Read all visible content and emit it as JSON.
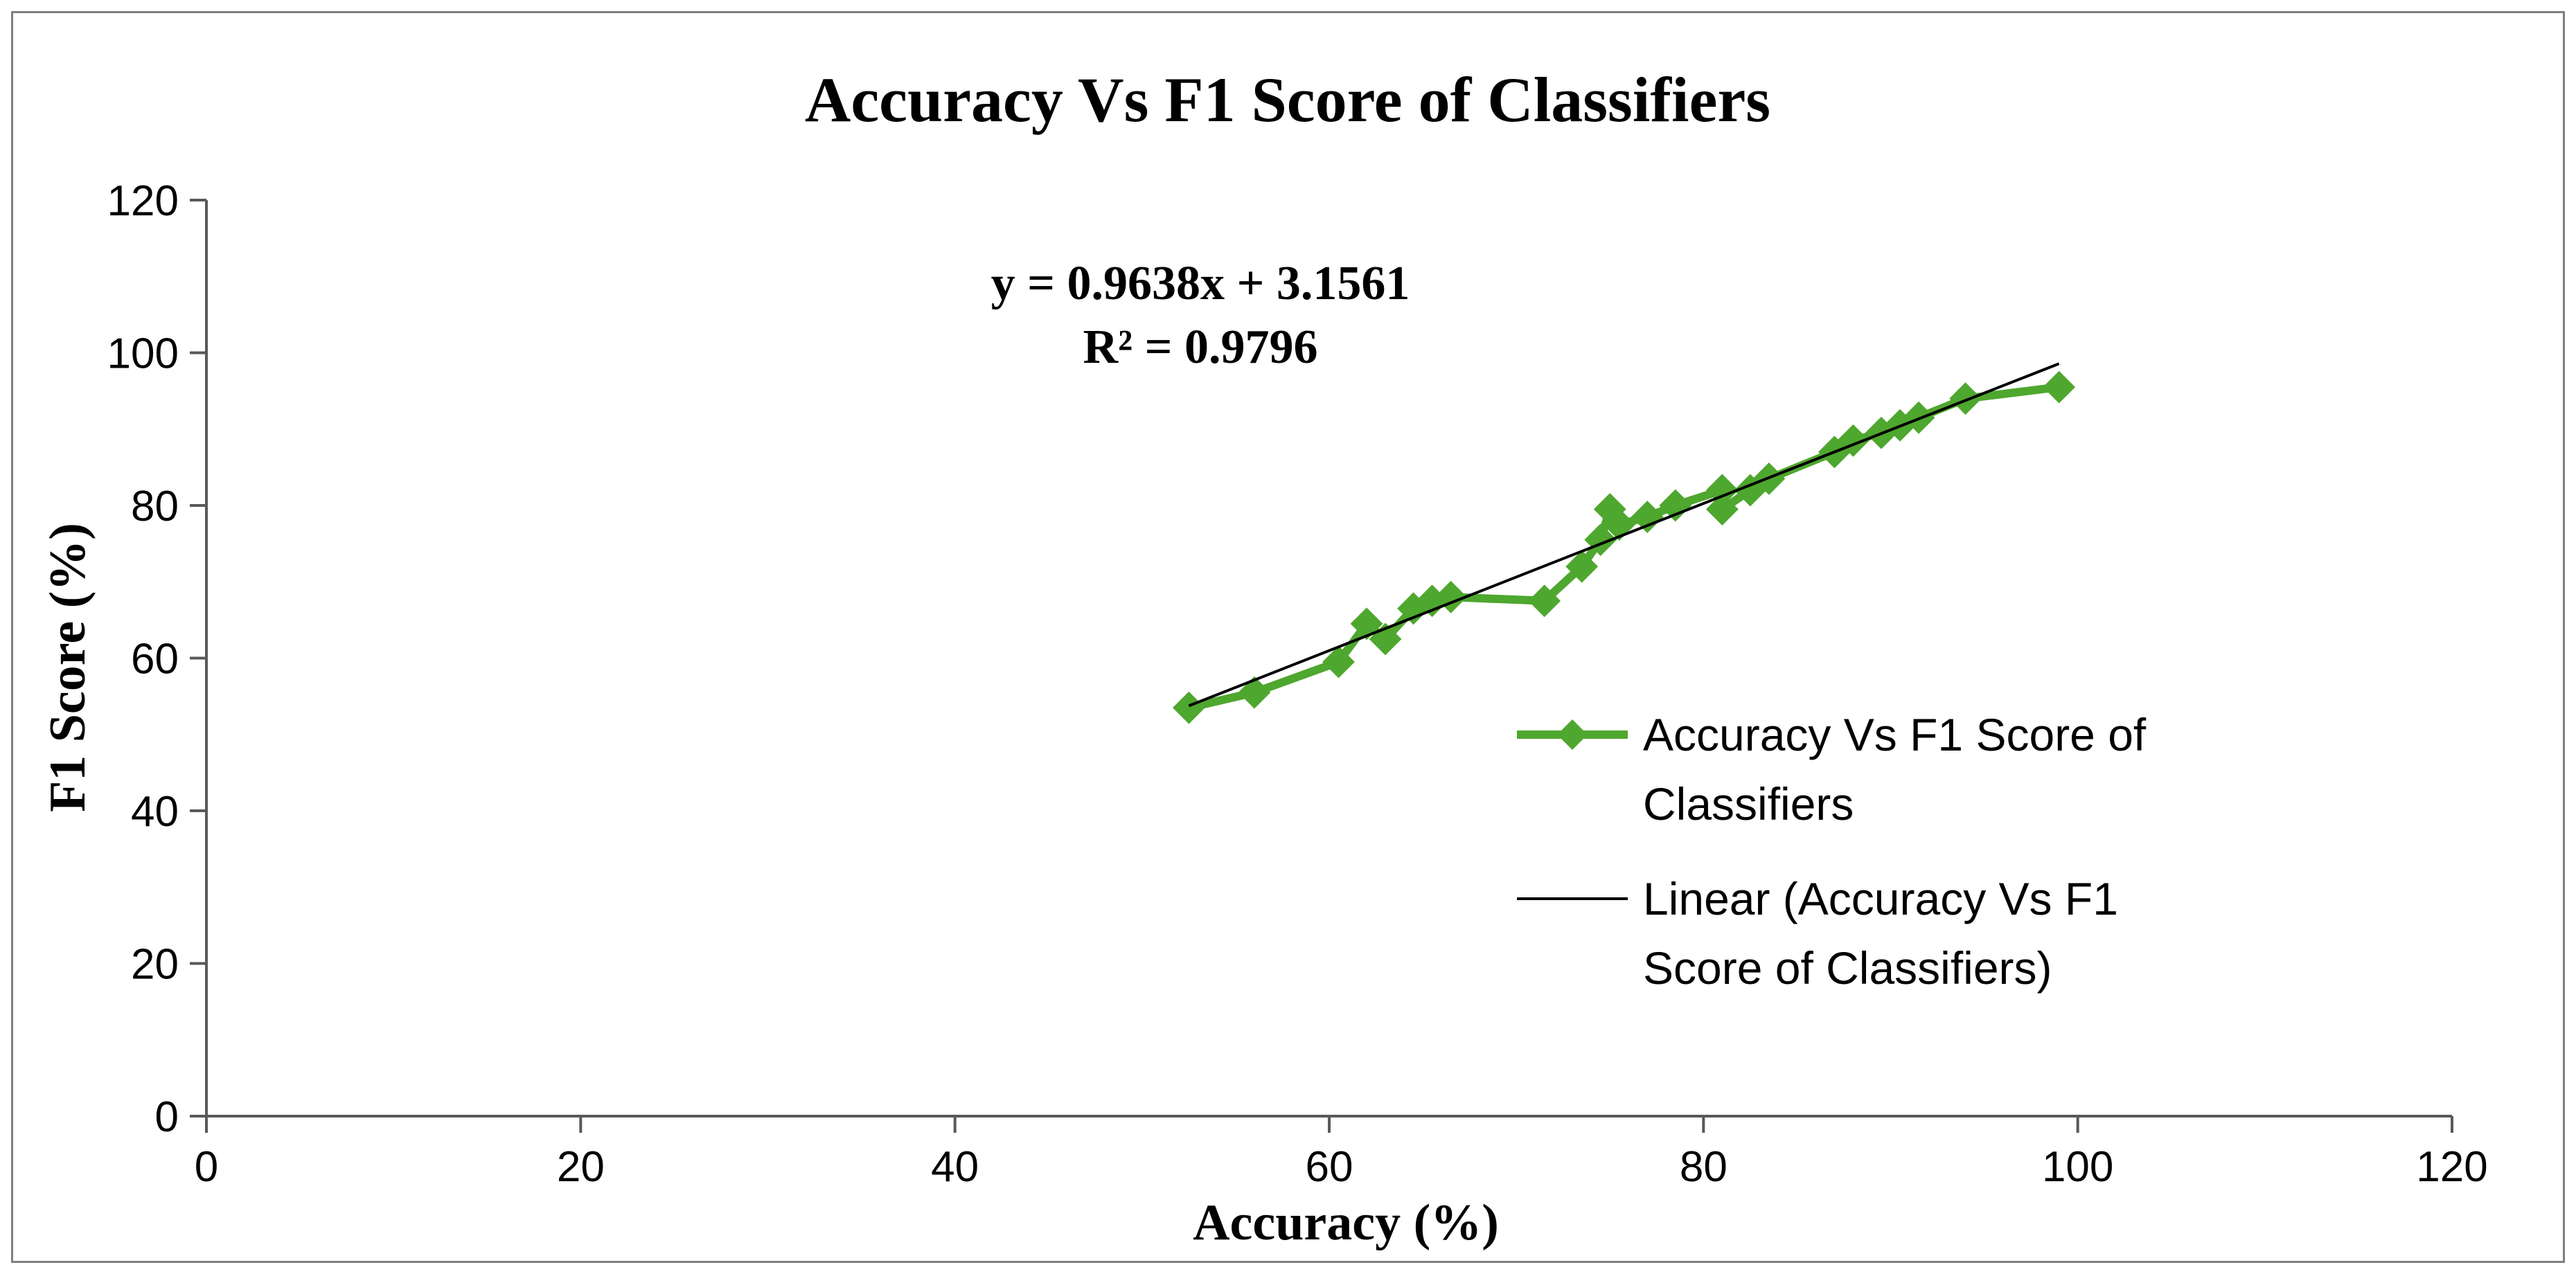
{
  "chart_data": {
    "type": "scatter",
    "title": "Accuracy Vs F1 Score of Classifiers",
    "xlabel": "Accuracy (%)",
    "ylabel": "F1 Score (%)",
    "xlim": [
      0,
      120
    ],
    "ylim": [
      0,
      120
    ],
    "x_ticks": [
      "0",
      "20",
      "40",
      "60",
      "80",
      "100",
      "120"
    ],
    "y_ticks": [
      "0",
      "20",
      "40",
      "60",
      "80",
      "100",
      "120"
    ],
    "grid": false,
    "legend_position": "right",
    "series_color": "#4ea72e",
    "trendline_color": "#000000",
    "series": [
      {
        "name": "Accuracy Vs F1 Score of Classifiers",
        "points": [
          [
            52.5,
            53.5
          ],
          [
            56,
            55.5
          ],
          [
            60.5,
            59.5
          ],
          [
            62,
            64.5
          ],
          [
            63,
            62.5
          ],
          [
            64.5,
            66.5
          ],
          [
            65.5,
            67.5
          ],
          [
            66.5,
            68
          ],
          [
            71.5,
            67.5
          ],
          [
            73.5,
            72
          ],
          [
            74.5,
            75.5
          ],
          [
            75,
            79.5
          ],
          [
            75.5,
            77.5
          ],
          [
            77,
            78.5
          ],
          [
            78.5,
            80
          ],
          [
            81,
            82
          ],
          [
            81,
            79.5
          ],
          [
            82.5,
            82
          ],
          [
            83.5,
            83.5
          ],
          [
            87,
            87
          ],
          [
            88,
            88.5
          ],
          [
            89.5,
            89.5
          ],
          [
            90.5,
            90.5
          ],
          [
            91.5,
            91.5
          ],
          [
            94,
            94
          ],
          [
            99,
            95.5
          ]
        ]
      }
    ],
    "trendline": {
      "name": "Linear (Accuracy Vs F1 Score of Classifiers)",
      "slope": 0.9638,
      "intercept": 3.1561,
      "x_range": [
        52.5,
        99
      ],
      "equation_label": "y = 0.9638x + 3.1561",
      "r2_label": "R² = 0.9796"
    },
    "legend": [
      {
        "label_lines": [
          "Accuracy Vs F1 Score of",
          "Classifiers"
        ]
      },
      {
        "label_lines": [
          "Linear (Accuracy Vs F1",
          "Score of Classifiers)"
        ]
      }
    ]
  }
}
